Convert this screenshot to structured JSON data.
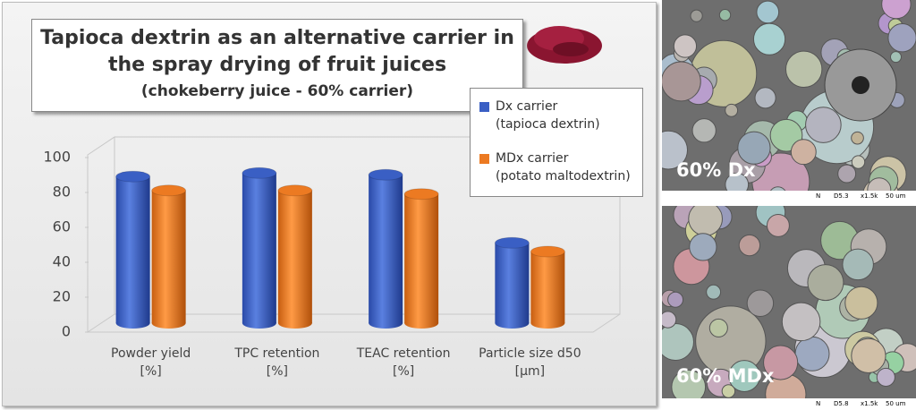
{
  "chart_data": {
    "type": "bar",
    "title": "Tapioca dextrin as an alternative carrier in the spray drying of fruit juices",
    "subtitle": "(chokeberry juice - 60% carrier)",
    "categories": [
      "Powder yield\n[%]",
      "TPC retention\n[%]",
      "TEAC retention\n[%]",
      "Particle size d50\n[µm]"
    ],
    "series": [
      {
        "name": "Dx carrier\n(tapioca dextrin)",
        "color": "#3a5fc4",
        "values": [
          84,
          86,
          85,
          46
        ]
      },
      {
        "name": "MDx carrier\n(potato maltodextrin)",
        "color": "#ec7a22",
        "values": [
          76,
          76,
          74,
          41
        ]
      }
    ],
    "ylim": [
      0,
      100
    ],
    "yticks": [
      0,
      20,
      40,
      60,
      80,
      100
    ],
    "grid": false,
    "legend": "upper right"
  },
  "images": [
    {
      "label": "60% Dx",
      "scale_bar": [
        "N",
        "D5.3",
        "x1.5k",
        "50 um"
      ]
    },
    {
      "label": "60% MDx",
      "scale_bar": [
        "N",
        "D5.8",
        "x1.5k",
        "50 um"
      ]
    }
  ]
}
